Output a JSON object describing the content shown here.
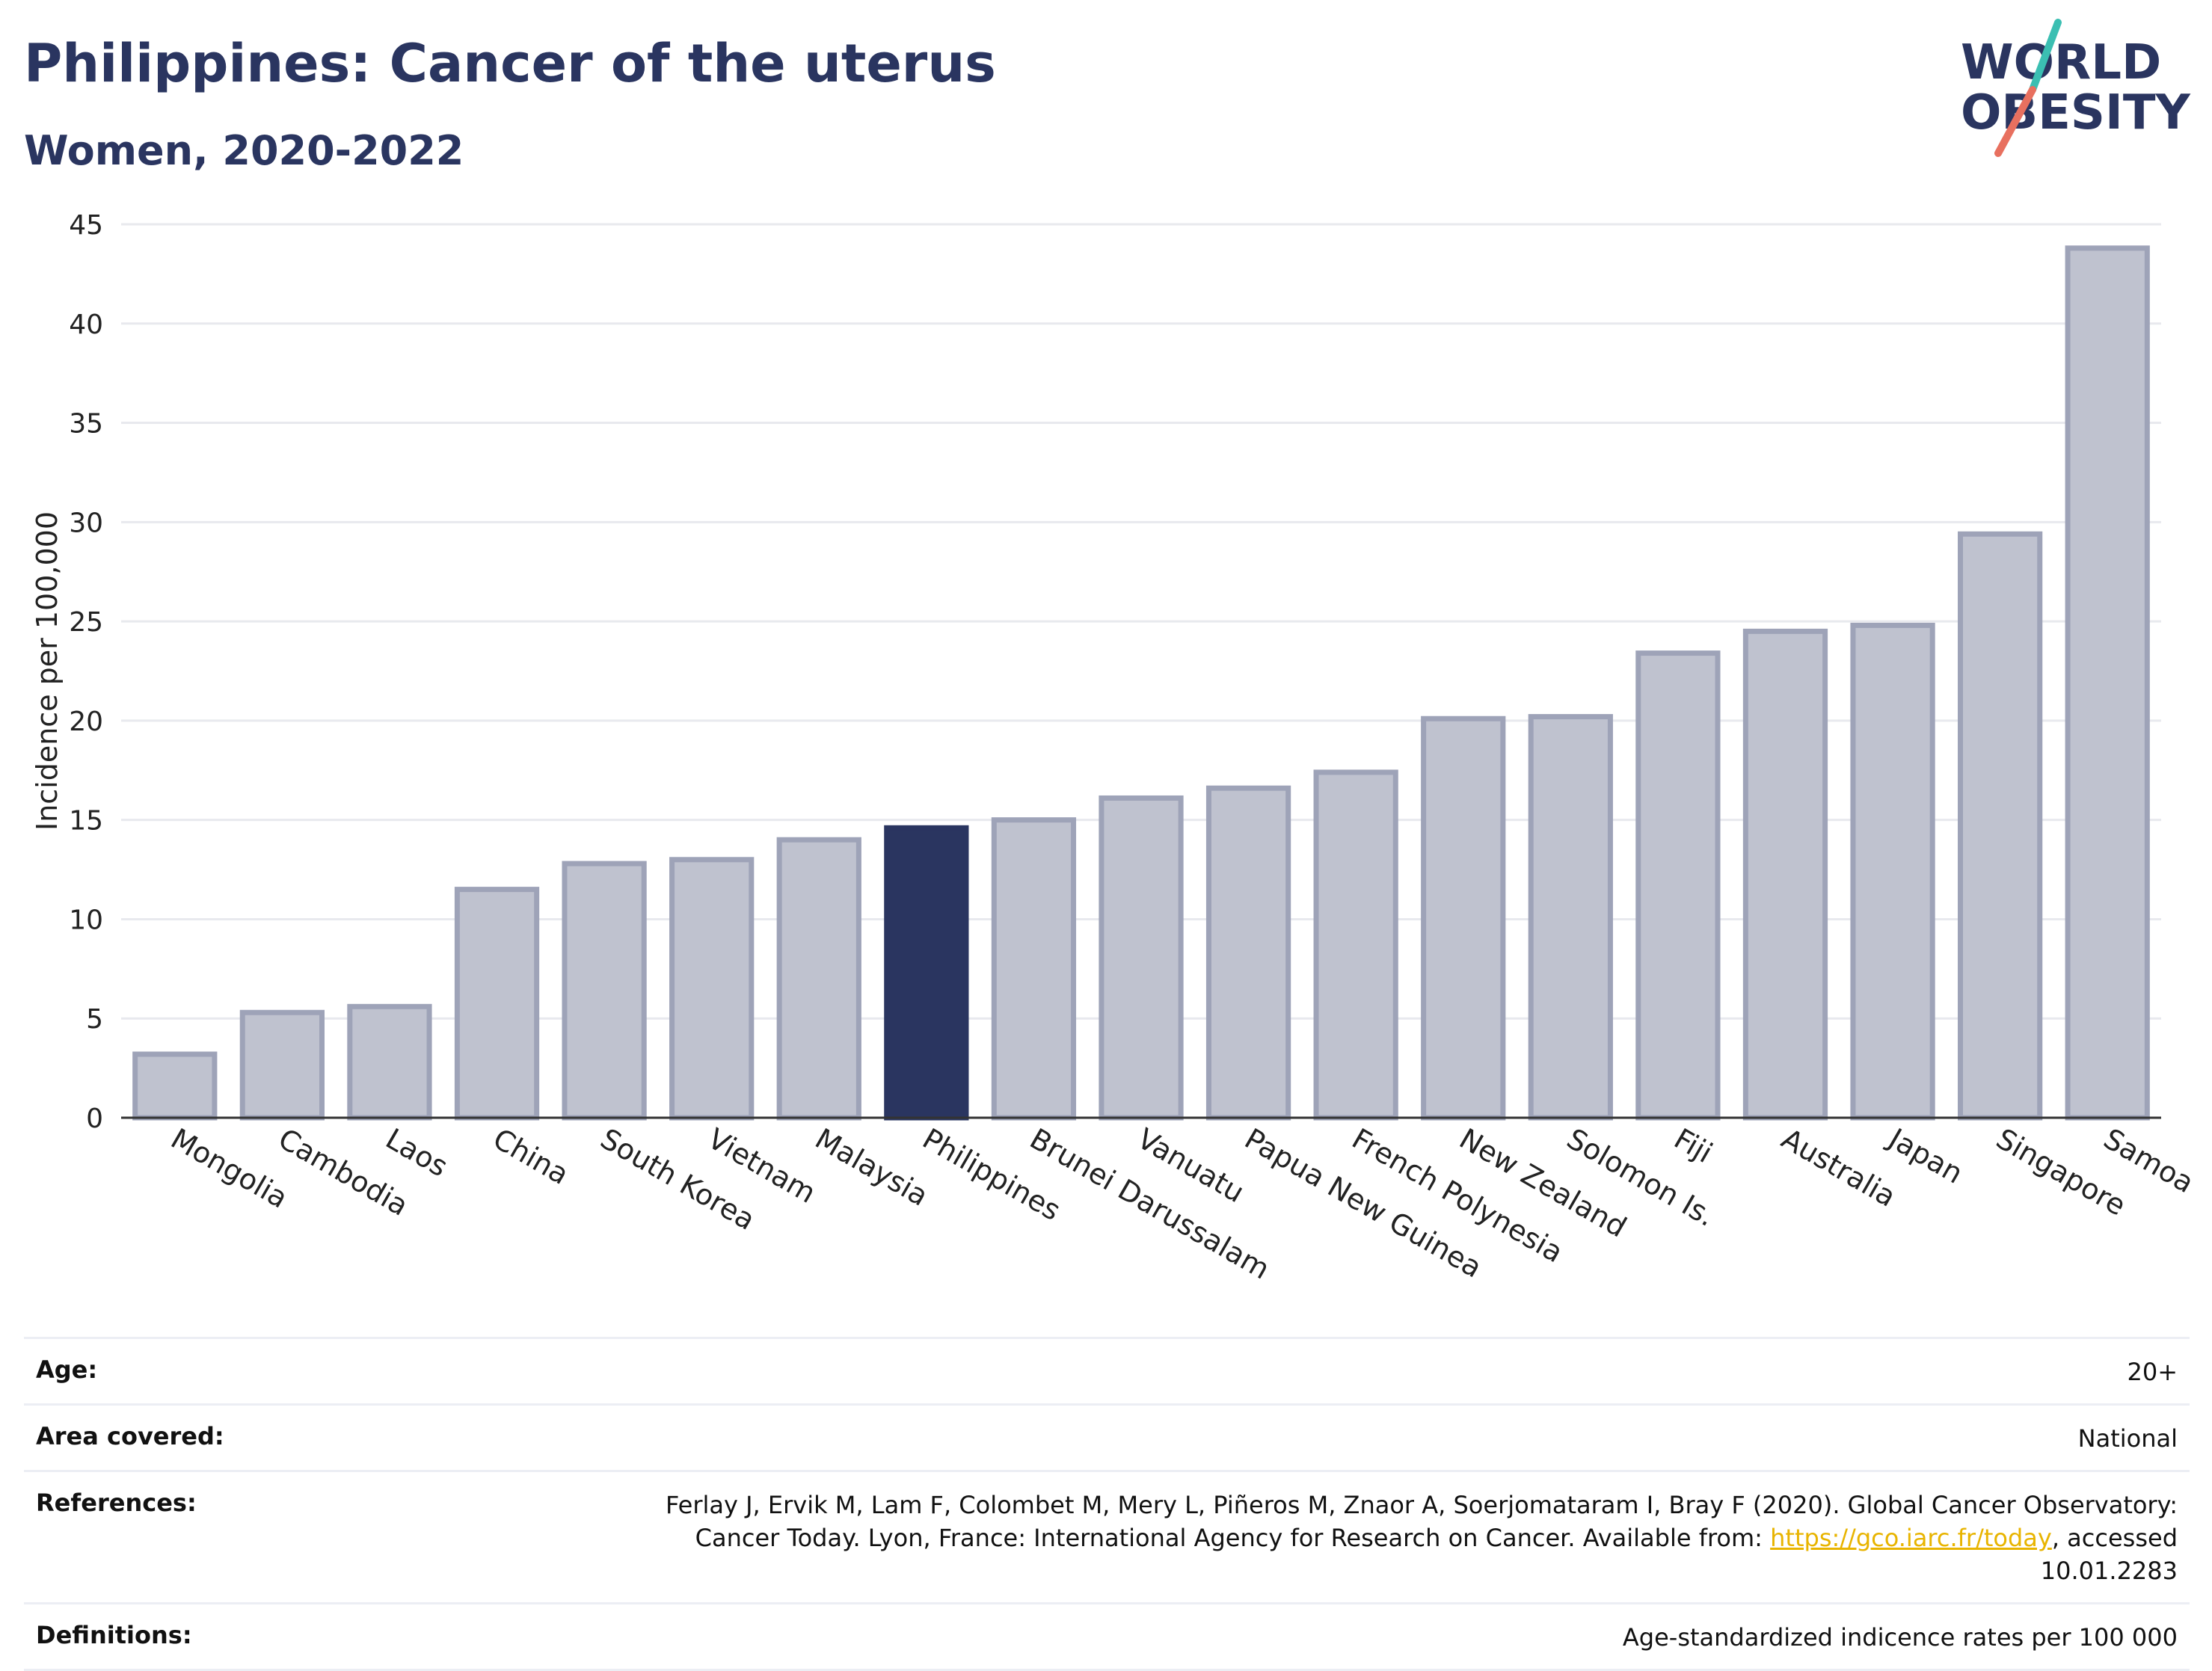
{
  "header": {
    "title": "Philippines: Cancer of the uterus",
    "subtitle": "Women, 2020-2022"
  },
  "logo": {
    "line1": "WORLD",
    "line2": "OBESITY"
  },
  "colors": {
    "highlight": "#2a3560",
    "bar_fill": "#bfc2cf",
    "bar_stroke": "#9ea3b8",
    "grid": "#e8e9ee",
    "logo_teal": "#3bbfb2",
    "logo_red": "#e8705f",
    "link": "#e8b400"
  },
  "chart_data": {
    "type": "bar",
    "ylabel": "Incidence per 100,000",
    "xlabel": "",
    "ylim": [
      0,
      45
    ],
    "yticks": [
      0,
      5,
      10,
      15,
      20,
      25,
      30,
      35,
      40,
      45
    ],
    "grid": true,
    "highlight": "Philippines",
    "categories": [
      "Mongolia",
      "Cambodia",
      "Laos",
      "China",
      "South Korea",
      "Vietnam",
      "Malaysia",
      "Philippines",
      "Brunei Darussalam",
      "Vanuatu",
      "Papua New Guinea",
      "French Polynesia",
      "New Zealand",
      "Solomon Is.",
      "Fiji",
      "Australia",
      "Japan",
      "Singapore",
      "Samoa"
    ],
    "values": [
      3.2,
      5.3,
      5.6,
      11.5,
      12.8,
      13.0,
      14.0,
      14.6,
      15.0,
      16.1,
      16.6,
      17.4,
      20.1,
      20.2,
      23.4,
      24.5,
      24.8,
      29.4,
      43.8
    ]
  },
  "meta": {
    "age_label": "Age:",
    "age_value": "20+",
    "area_label": "Area covered:",
    "area_value": "National",
    "references_label": "References:",
    "references_text_1": "Ferlay J, Ervik M, Lam F, Colombet M, Mery L, Piñeros M, Znaor A, Soerjomataram I, Bray F (2020). Global Cancer Observatory: Cancer Today. Lyon, France: International Agency for Research on Cancer. Available from: ",
    "references_link": "https://gco.iarc.fr/today",
    "references_text_2": ", accessed 10.01.2283",
    "definitions_label": "Definitions:",
    "definitions_value": "Age-standardized indicence rates per 100 000"
  }
}
